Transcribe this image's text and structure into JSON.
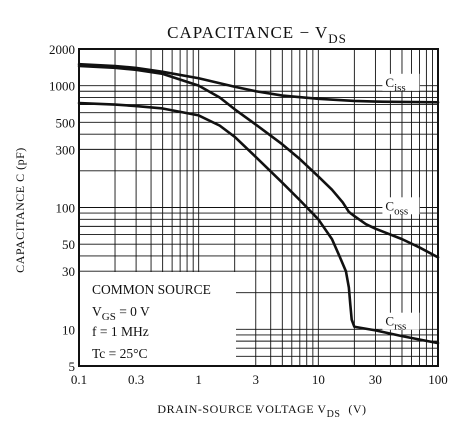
{
  "chart_data": {
    "type": "line",
    "title": "CAPACITANCE − V",
    "title_sub": "DS",
    "xlabel": "DRAIN-SOURCE VOLTAGE  V",
    "xlabel_sub": "DS",
    "xlabel_unit": "(V)",
    "ylabel": "CAPACITANCE  C  (pF)",
    "x_scale": "log",
    "y_scale": "log",
    "xlim": [
      0.1,
      100
    ],
    "ylim": [
      5,
      2000
    ],
    "grid": true,
    "x_ticks": [
      {
        "value": 0.1,
        "label": "0.1"
      },
      {
        "value": 0.3,
        "label": "0.3"
      },
      {
        "value": 1,
        "label": "1"
      },
      {
        "value": 3,
        "label": "3"
      },
      {
        "value": 10,
        "label": "10"
      },
      {
        "value": 30,
        "label": "30"
      },
      {
        "value": 100,
        "label": "100"
      }
    ],
    "y_ticks": [
      {
        "value": 2000,
        "label": "2000"
      },
      {
        "value": 1000,
        "label": "1000"
      },
      {
        "value": 500,
        "label": "500"
      },
      {
        "value": 300,
        "label": "300"
      },
      {
        "value": 100,
        "label": "100"
      },
      {
        "value": 50,
        "label": "50"
      },
      {
        "value": 30,
        "label": "30"
      },
      {
        "value": 10,
        "label": "10"
      },
      {
        "value": 5,
        "label": "5"
      }
    ],
    "series": [
      {
        "name": "C",
        "name_sub": "iss",
        "label_at": [
          33,
          960
        ],
        "x": [
          0.1,
          0.2,
          0.3,
          0.5,
          1,
          2,
          3,
          5,
          10,
          20,
          30,
          50,
          100
        ],
        "values": [
          1500,
          1450,
          1400,
          1300,
          1150,
          980,
          900,
          830,
          780,
          750,
          740,
          735,
          730
        ]
      },
      {
        "name": "C",
        "name_sub": "oss",
        "label_at": [
          33,
          93
        ],
        "x": [
          0.1,
          0.2,
          0.3,
          0.5,
          1,
          1.5,
          2,
          3,
          5,
          7,
          10,
          13,
          16,
          18,
          20,
          25,
          30,
          50,
          70,
          100
        ],
        "values": [
          1450,
          1400,
          1350,
          1250,
          1000,
          800,
          640,
          480,
          330,
          250,
          180,
          140,
          110,
          92,
          85,
          73,
          67,
          55,
          47,
          39
        ]
      },
      {
        "name": "C",
        "name_sub": "rss",
        "label_at": [
          33,
          10.5
        ],
        "x": [
          0.1,
          0.2,
          0.3,
          0.5,
          1,
          1.5,
          2,
          3,
          5,
          7,
          10,
          13,
          15,
          17,
          18,
          18.5,
          19,
          20,
          30,
          50,
          100
        ],
        "values": [
          720,
          700,
          680,
          650,
          570,
          470,
          380,
          260,
          160,
          115,
          80,
          55,
          40,
          30,
          22,
          16,
          12,
          10.5,
          9.8,
          8.8,
          7.7
        ]
      }
    ],
    "annotation": {
      "lines": [
        {
          "text": "COMMON SOURCE"
        },
        {
          "text": "V",
          "sub": "GS",
          "tail": " = 0 V"
        },
        {
          "text": "f = 1 MHz"
        },
        {
          "text": "Tc = 25°C"
        }
      ]
    }
  }
}
